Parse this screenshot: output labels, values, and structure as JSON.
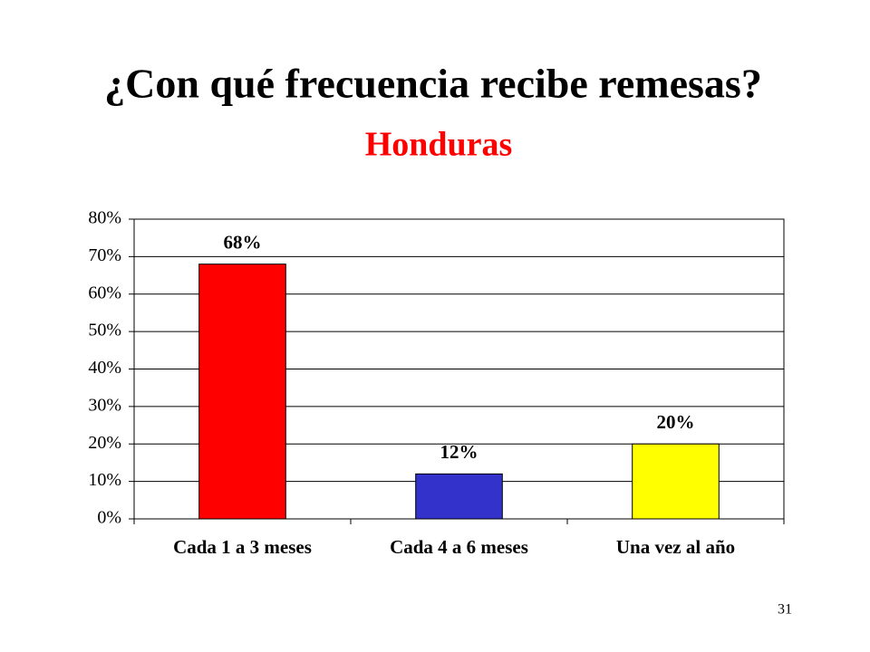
{
  "chart_data": {
    "type": "bar",
    "title": "¿Con qué frecuencia recibe remesas?",
    "subtitle": "Honduras",
    "categories": [
      "Cada 1 a 3 meses",
      "Cada 4 a 6 meses",
      "Una vez al año"
    ],
    "values": [
      68,
      12,
      20
    ],
    "value_labels": [
      "68%",
      "12%",
      "20%"
    ],
    "colors": [
      "#ff0000",
      "#3333cc",
      "#ffff00"
    ],
    "ylim": [
      0,
      80
    ],
    "yticks": [
      {
        "value": 0,
        "label": "0%"
      },
      {
        "value": 10,
        "label": "10%"
      },
      {
        "value": 20,
        "label": "20%"
      },
      {
        "value": 30,
        "label": "30%"
      },
      {
        "value": 40,
        "label": "40%"
      },
      {
        "value": 50,
        "label": "50%"
      },
      {
        "value": 60,
        "label": "60%"
      },
      {
        "value": 70,
        "label": "70%"
      },
      {
        "value": 80,
        "label": "80%"
      }
    ],
    "grid": true
  },
  "page_number": "31"
}
